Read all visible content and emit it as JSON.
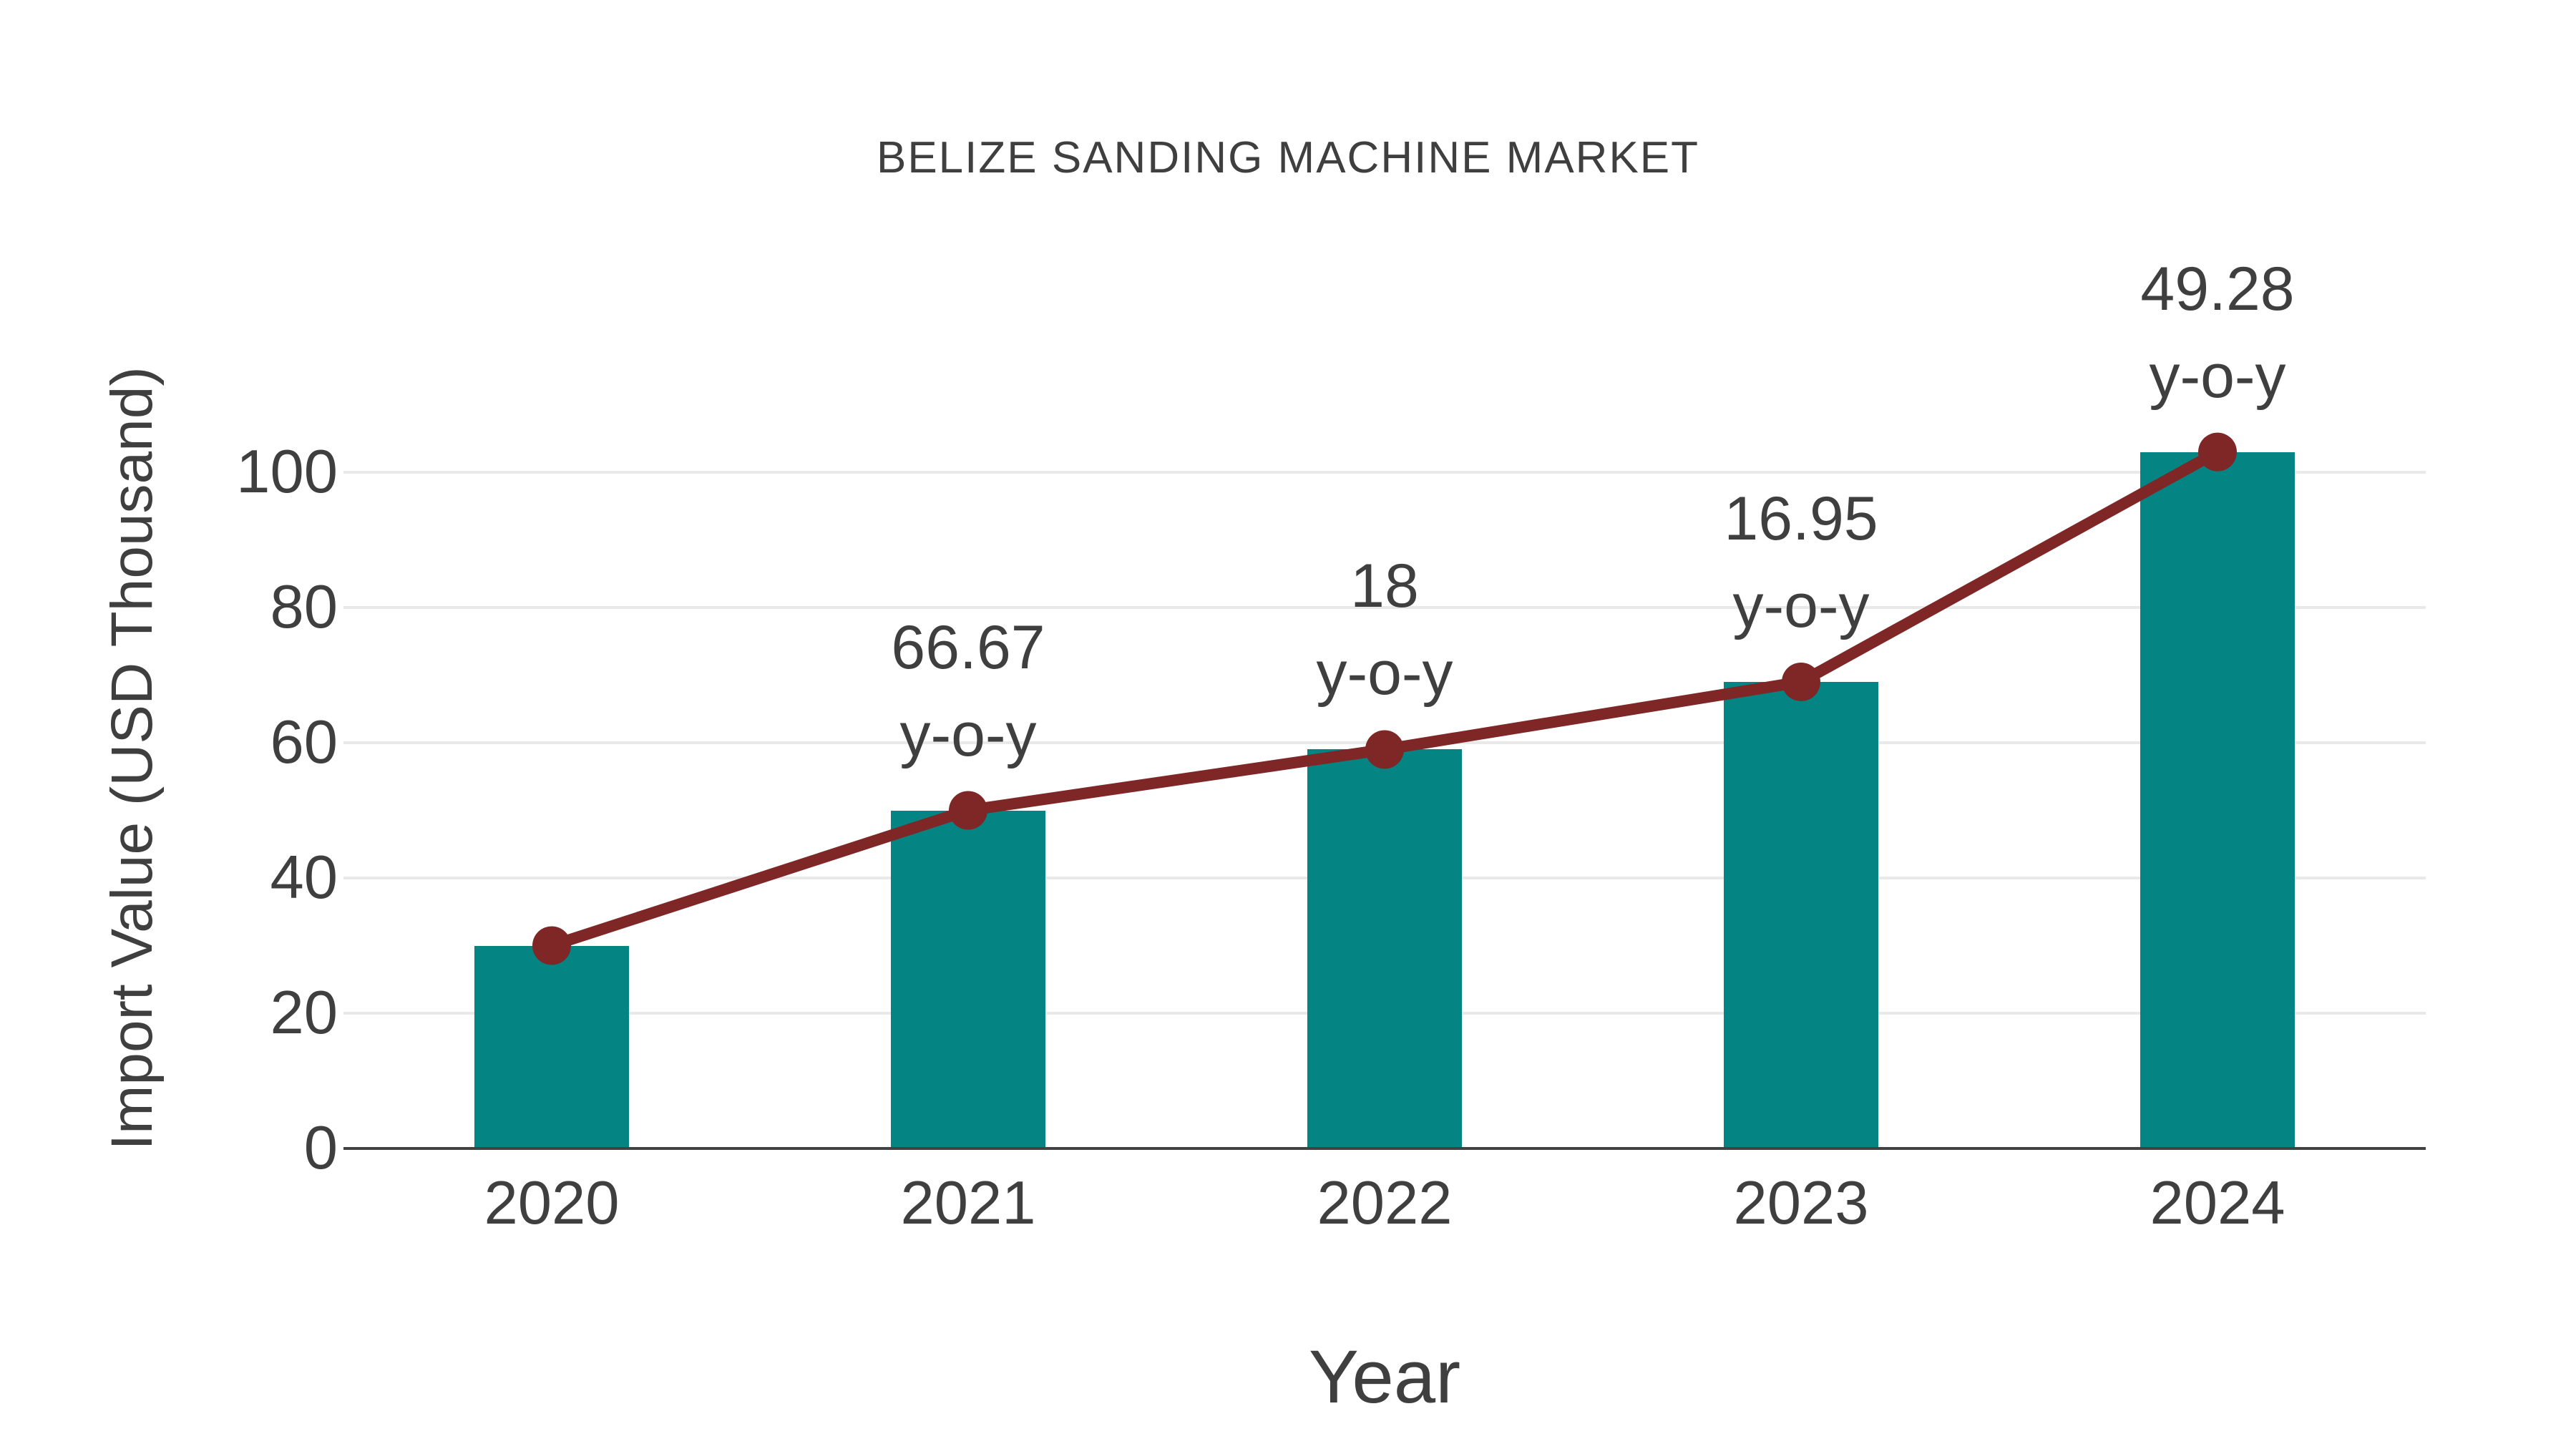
{
  "chart_data": {
    "type": "bar",
    "title": "BELIZE SANDING MACHINE MARKET",
    "xlabel": "Year",
    "ylabel": "Import Value (USD Thousand)",
    "categories": [
      "2020",
      "2021",
      "2022",
      "2023",
      "2024"
    ],
    "series": [
      {
        "name": "Import Value bars",
        "type": "bar",
        "values": [
          30,
          50,
          59,
          69,
          103
        ],
        "color": "#058484"
      },
      {
        "name": "Import Value trend",
        "type": "line",
        "values": [
          30,
          50,
          59,
          69,
          103
        ],
        "color": "#7f2626"
      }
    ],
    "annotations": [
      {
        "category": "2021",
        "lines": [
          "66.67",
          "y-o-y"
        ]
      },
      {
        "category": "2022",
        "lines": [
          "18",
          "y-o-y"
        ]
      },
      {
        "category": "2023",
        "lines": [
          "16.95",
          "y-o-y"
        ]
      },
      {
        "category": "2024",
        "lines": [
          "49.28",
          "y-o-y"
        ]
      }
    ],
    "yticks": [
      0,
      20,
      40,
      60,
      80,
      100
    ],
    "ylim": [
      0,
      110
    ],
    "grid": true,
    "legend": false,
    "colors": {
      "text": "#3f3f3f",
      "gridline": "#e9e9e9",
      "axis_line": "#424242",
      "background": "#ffffff"
    }
  }
}
